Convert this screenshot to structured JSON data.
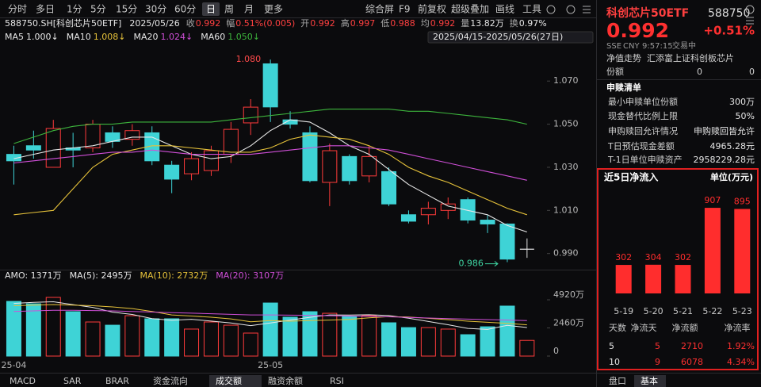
{
  "toolbar": {
    "periods": [
      "分时",
      "多日",
      "1分",
      "5分",
      "15分",
      "30分",
      "60分",
      "日",
      "周",
      "月",
      "更多"
    ],
    "tools": [
      "综合屏",
      "F9",
      "前复权",
      "超级叠加",
      "画线",
      "工具"
    ]
  },
  "quote_bar": {
    "symbol": "588750.SH[科创芯片50ETF]",
    "date": "2025/05/26",
    "fields": [
      {
        "label": "收",
        "value": "0.992",
        "color": "#ff4040"
      },
      {
        "label": "幅",
        "value": "0.51%(0.005)",
        "color": "#ff4040"
      },
      {
        "label": "开",
        "value": "0.992",
        "color": "#ff4040"
      },
      {
        "label": "高",
        "value": "0.997",
        "color": "#ff4040"
      },
      {
        "label": "低",
        "value": "0.988",
        "color": "#ff4040"
      },
      {
        "label": "均",
        "value": "0.992",
        "color": "#ff4040"
      },
      {
        "label": "量",
        "value": "13.82万",
        "color": "#e6e6e6"
      },
      {
        "label": "换",
        "value": "0.97%",
        "color": "#e6e6e6"
      }
    ],
    "range": "2025/04/15-2025/05/26(27日)"
  },
  "chart_data": [
    {
      "type": "candlestick",
      "categories": [
        "25-04",
        null,
        null,
        null,
        null,
        null,
        null,
        null,
        null,
        null,
        null,
        null,
        null,
        "25-05",
        null,
        null,
        null,
        null,
        null,
        null,
        null,
        null,
        null,
        null,
        null,
        null,
        null
      ],
      "open": [
        1.036,
        1.04,
        1.03,
        1.039,
        1.039,
        1.046,
        1.043,
        1.046,
        1.031,
        1.027,
        1.0285,
        1.036,
        1.0506,
        1.078,
        1.052,
        1.046,
        1.023,
        1.035,
        1.026,
        1.028,
        1.008,
        1.008,
        1.01,
        1.015,
        1.0055,
        1.0037,
        0.992
      ],
      "high": [
        1.04,
        1.047,
        1.052,
        1.046,
        1.052,
        1.049,
        1.05,
        1.049,
        1.033,
        1.037,
        1.04,
        1.051,
        1.0616,
        1.08,
        1.056,
        1.049,
        1.041,
        1.036,
        1.04,
        1.03,
        1.01,
        1.014,
        1.016,
        1.016,
        1.008,
        1.004,
        0.997
      ],
      "low": [
        1.022,
        1.034,
        1.03,
        1.03,
        1.037,
        1.039,
        1.04,
        1.031,
        1.018,
        1.024,
        1.026,
        1.032,
        1.045,
        1.051,
        1.048,
        1.023,
        1.012,
        1.022,
        1.023,
        1.012,
        1.004,
        1.0035,
        1.006,
        1.004,
        0.9995,
        0.986,
        0.988
      ],
      "close": [
        1.033,
        1.038,
        1.048,
        1.038,
        1.05,
        1.042,
        1.047,
        1.033,
        1.0245,
        1.034,
        1.0377,
        1.0476,
        1.0579,
        1.058,
        1.05,
        1.0238,
        1.0377,
        1.0238,
        1.035,
        1.013,
        1.005,
        1.011,
        1.013,
        1.0055,
        1.0037,
        0.9874,
        0.992
      ],
      "up_color": "#ff3b3b",
      "down_color": "#3ed3d6",
      "flat_color": "#e0e0e0",
      "ylim": [
        0.984,
        1.087
      ],
      "yticks": [
        {
          "value": 1.07,
          "label": "1.070"
        },
        {
          "value": 1.05,
          "label": "1.050"
        },
        {
          "value": 1.03,
          "label": "1.030"
        },
        {
          "value": 1.01,
          "label": "1.010"
        },
        {
          "value": 0.99,
          "label": "0.990"
        }
      ],
      "series": [
        {
          "name": "MA5",
          "legend_value": "1.000↓",
          "color": "#e8e8e8",
          "values": [
            1.034,
            1.036,
            1.038,
            1.039,
            1.04,
            1.042,
            1.044,
            1.044,
            1.04,
            1.036,
            1.034,
            1.035,
            1.04,
            1.047,
            1.052,
            1.051,
            1.046,
            1.04,
            1.036,
            1.029,
            1.022,
            1.017,
            1.012,
            1.01,
            1.008,
            1.003,
            1.0
          ]
        },
        {
          "name": "MA10",
          "legend_value": "1.008↓",
          "color": "#e6c23a",
          "values": [
            1.008,
            1.009,
            1.01,
            1.02,
            1.03,
            1.036,
            1.038,
            1.04,
            1.04,
            1.039,
            1.038,
            1.037,
            1.037,
            1.039,
            1.043,
            1.045,
            1.044,
            1.043,
            1.04,
            1.036,
            1.03,
            1.026,
            1.023,
            1.019,
            1.015,
            1.011,
            1.008
          ]
        },
        {
          "name": "MA20",
          "legend_value": "1.024↓",
          "color": "#d04fd8",
          "values": [
            1.032,
            1.033,
            1.034,
            1.035,
            1.036,
            1.037,
            1.037,
            1.038,
            1.037,
            1.036,
            1.036,
            1.036,
            1.036,
            1.037,
            1.038,
            1.039,
            1.04,
            1.04,
            1.039,
            1.038,
            1.036,
            1.034,
            1.032,
            1.03,
            1.028,
            1.026,
            1.024
          ]
        },
        {
          "name": "MA60",
          "legend_value": "1.050↓",
          "color": "#3db53d",
          "values": [
            1.041,
            1.044,
            1.047,
            1.049,
            1.05,
            1.05,
            1.051,
            1.051,
            1.051,
            1.051,
            1.051,
            1.052,
            1.053,
            1.054,
            1.055,
            1.056,
            1.057,
            1.057,
            1.057,
            1.057,
            1.056,
            1.056,
            1.055,
            1.054,
            1.053,
            1.052,
            1.05
          ]
        }
      ],
      "annotations": [
        {
          "text": "1.080",
          "color": "#ff4a4a"
        },
        {
          "text": "0.986",
          "color": "#3ed3a0"
        }
      ]
    },
    {
      "type": "volume",
      "label": "AMO: 1371万",
      "values": [
        4780,
        4570,
        5130,
        3880,
        2980,
        2700,
        3530,
        3260,
        3260,
        2360,
        2980,
        2700,
        2010,
        4640,
        3400,
        3880,
        3740,
        3460,
        3530,
        2910,
        2490,
        2490,
        2360,
        1870,
        2560,
        4370,
        1371
      ],
      "ylim": [
        0,
        6170
      ],
      "yticks": [
        {
          "value": 4920,
          "label": "4920万"
        },
        {
          "value": 2460,
          "label": "2460万"
        },
        0
      ],
      "series": [
        {
          "legend": "MA(5): 2495万",
          "color": "#e8e8e8",
          "values": [
            4600,
            4700,
            4750,
            4500,
            4260,
            3840,
            3640,
            3270,
            3130,
            3220,
            3060,
            2900,
            2660,
            2900,
            3150,
            3390,
            3600,
            3590,
            3610,
            3540,
            3310,
            3020,
            2740,
            2420,
            2330,
            2690,
            2495
          ]
        },
        {
          "legend": "MA(10): 2732万",
          "color": "#e6c23a",
          "values": [
            4400,
            4450,
            4500,
            4450,
            4400,
            4300,
            4150,
            3900,
            3600,
            3500,
            3400,
            3250,
            3000,
            3100,
            3050,
            3100,
            3150,
            3200,
            3350,
            3450,
            3420,
            3300,
            3180,
            3050,
            2950,
            2860,
            2732
          ]
        },
        {
          "legend": "MA(20): 3107万",
          "color": "#d04fd8",
          "values": [
            3900,
            3950,
            4000,
            4000,
            3980,
            3950,
            3900,
            3850,
            3800,
            3750,
            3700,
            3650,
            3600,
            3600,
            3580,
            3560,
            3530,
            3500,
            3470,
            3430,
            3380,
            3330,
            3280,
            3230,
            3190,
            3150,
            3107
          ]
        }
      ]
    },
    {
      "type": "bar",
      "title": "近5日净流入",
      "unit_label": "单位(万元)",
      "categories": [
        "5-19",
        "5-20",
        "5-21",
        "5-22",
        "5-23"
      ],
      "values": [
        302,
        304,
        302,
        907,
        895
      ],
      "color": "#ff2d2d",
      "ylim": [
        0,
        1000
      ]
    }
  ],
  "tabs": [
    "MACD",
    "SAR",
    "BRAR",
    "资金流向",
    "成交额",
    "融资余额",
    "RSI"
  ],
  "right_panel": {
    "name": "科创芯片50ETF",
    "code": "588750",
    "price": "0.992",
    "change": "+0.51%",
    "status": [
      "SSE",
      "CNY",
      "9:57:15",
      "交易中"
    ],
    "nav_label": "净值走势",
    "fund_name": "汇添富上证科创板芯片",
    "share_row": [
      "份额",
      "0",
      "0"
    ],
    "list_title": "申赎清单",
    "list": [
      [
        "最小申赎单位份额",
        "300万"
      ],
      [
        "现金替代比例上限",
        "50%"
      ],
      [
        "申购赎回允许情况",
        "申购赎回皆允许"
      ],
      [
        "T日预估现金差额",
        "4965.28元"
      ],
      [
        "T-1日单位申赎资产",
        "2958229.28元"
      ]
    ],
    "net_flow_table": {
      "header": [
        "天数",
        "净流天",
        "净流额",
        "净流率"
      ],
      "rows": [
        [
          "5",
          "5",
          "2710",
          "1.92%"
        ],
        [
          "10",
          "9",
          "6078",
          "4.34%"
        ]
      ]
    },
    "tabs": [
      "盘口",
      "基本"
    ]
  }
}
